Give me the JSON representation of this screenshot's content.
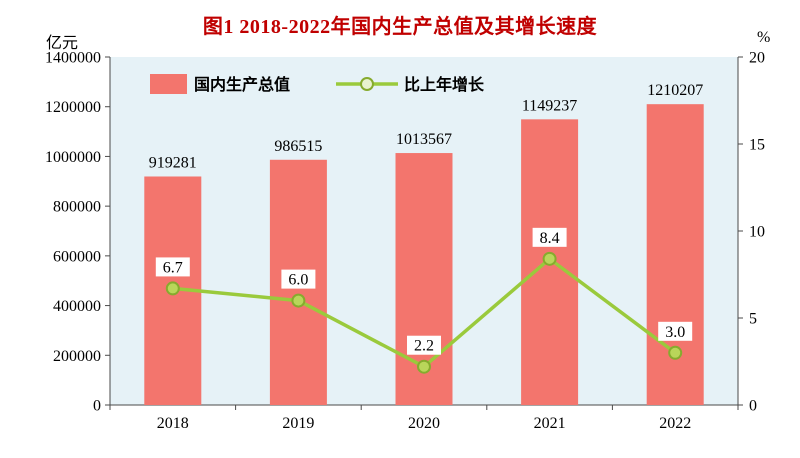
{
  "chart_data": {
    "type": "combo",
    "title": "图1  2018-2022年国内生产总值及其增长速度",
    "title_color": "#c00000",
    "categories": [
      "2018",
      "2019",
      "2020",
      "2021",
      "2022"
    ],
    "series": [
      {
        "name": "国内生产总值",
        "type": "bar",
        "axis": "left",
        "values": [
          919281,
          986515,
          1013567,
          1149237,
          1210207
        ],
        "value_labels": [
          "919281",
          "986515",
          "1013567",
          "1149237",
          "1210207"
        ],
        "color": "#f3756d"
      },
      {
        "name": "比上年增长",
        "type": "line",
        "axis": "right",
        "values": [
          6.7,
          6.0,
          2.2,
          8.4,
          3.0
        ],
        "value_labels": [
          "6.7",
          "6.0",
          "2.2",
          "8.4",
          "3.0"
        ],
        "color": "#9aca3c"
      }
    ],
    "left_axis": {
      "label": "亿元",
      "min": 0,
      "max": 1400000,
      "step": 200000
    },
    "right_axis": {
      "label": "%",
      "min": 0,
      "max": 20,
      "step": 5
    },
    "legend": {
      "position": "top-inside",
      "entries": [
        "国内生产总值",
        "比上年增长"
      ]
    },
    "grid": false,
    "plot_background": "#e6f2f7"
  }
}
